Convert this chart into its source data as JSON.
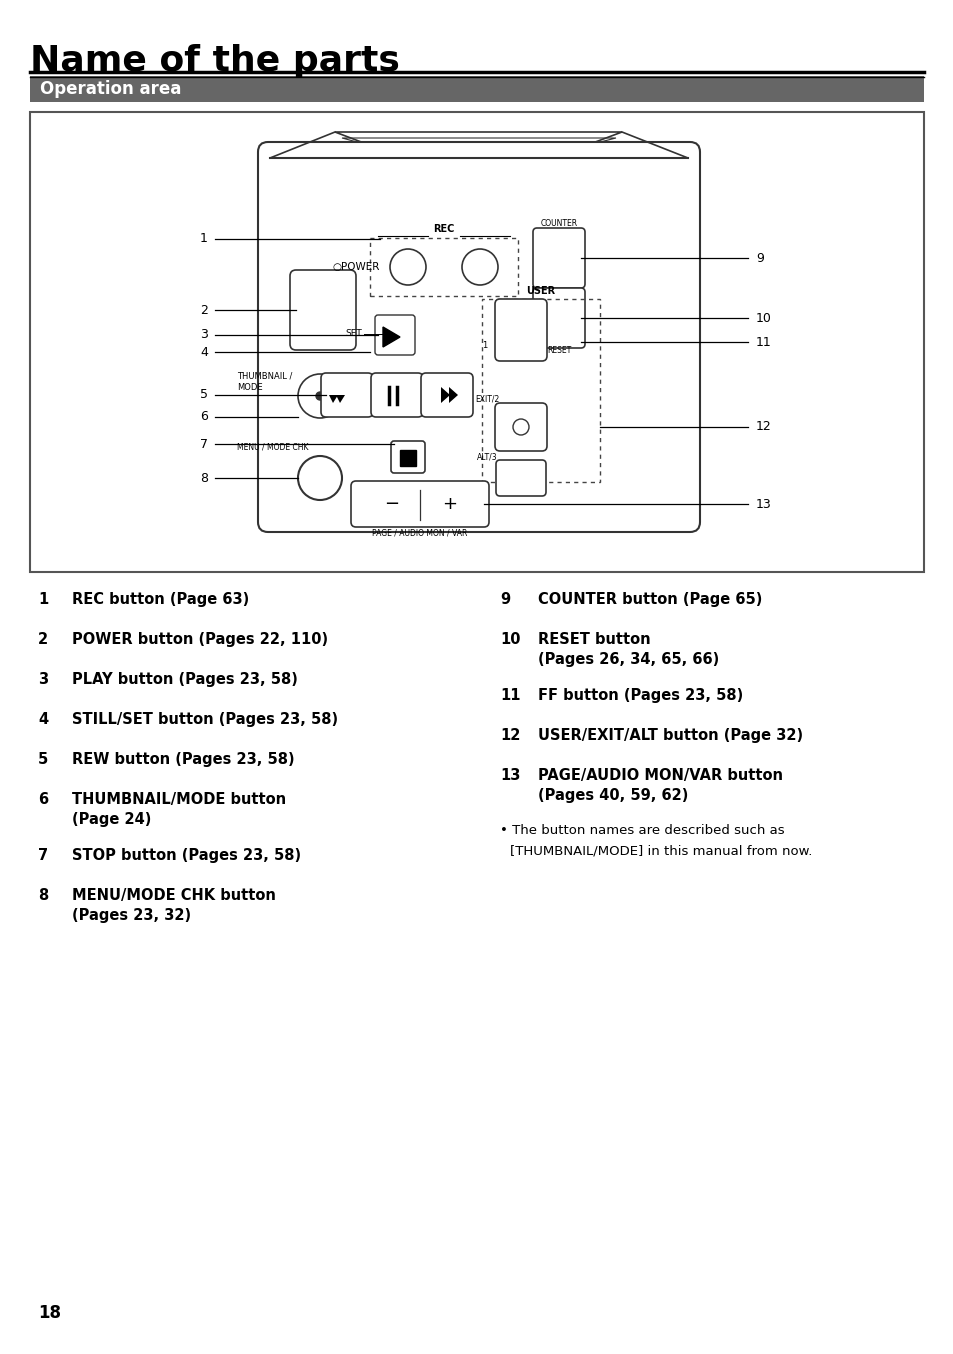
{
  "title": "Name of the parts",
  "section_header": "Operation area",
  "section_header_bg": "#666666",
  "section_header_color": "#ffffff",
  "page_number": "18",
  "bg_color": "#ffffff",
  "left_items": [
    {
      "num": "1",
      "text": "REC button (Page 63)"
    },
    {
      "num": "2",
      "text": "POWER button (Pages 22, 110)"
    },
    {
      "num": "3",
      "text": "PLAY button (Pages 23, 58)"
    },
    {
      "num": "4",
      "text": "STILL/SET button (Pages 23, 58)"
    },
    {
      "num": "5",
      "text": "REW button (Pages 23, 58)"
    },
    {
      "num": "6",
      "text": "THUMBNAIL/MODE button\n(Page 24)"
    },
    {
      "num": "7",
      "text": "STOP button (Pages 23, 58)"
    },
    {
      "num": "8",
      "text": "MENU/MODE CHK button\n(Pages 23, 32)"
    }
  ],
  "right_items": [
    {
      "num": "9",
      "text": "COUNTER button (Page 65)"
    },
    {
      "num": "10",
      "text": "RESET button\n(Pages 26, 34, 65, 66)"
    },
    {
      "num": "11",
      "text": "FF button (Pages 23, 58)"
    },
    {
      "num": "12",
      "text": "USER/EXIT/ALT button (Page 32)"
    },
    {
      "num": "13",
      "text": "PAGE/AUDIO MON/VAR button\n(Pages 40, 59, 62)"
    }
  ],
  "note": "The button names are described such as\n[THUMBNAIL/MODE] in this manual from now."
}
